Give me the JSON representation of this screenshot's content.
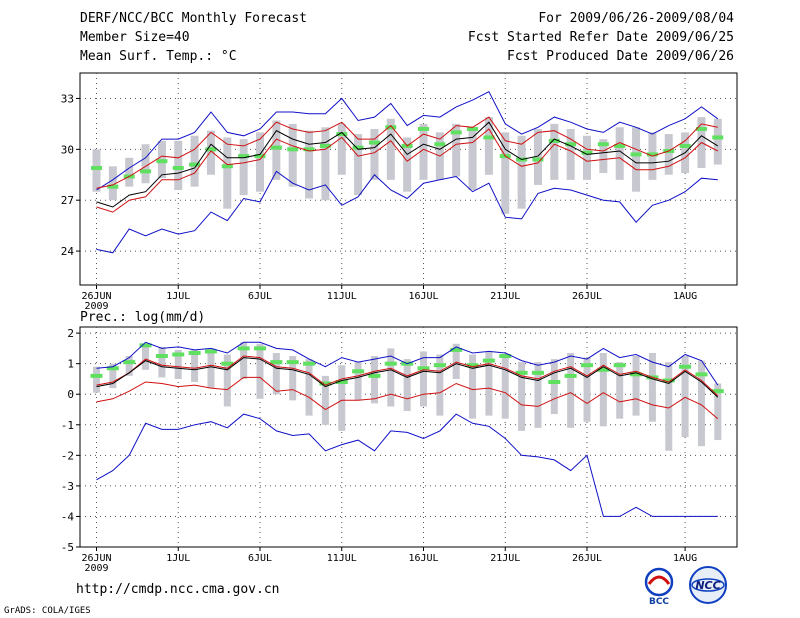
{
  "header": {
    "title": "DERF/NCC/BCC Monthly Forecast",
    "member": "Member Size=40",
    "variable": "Mean Surf. Temp.: °C",
    "period": "For 2009/06/26-2009/08/04",
    "started": "Fcst Started Refer Date 2009/06/25",
    "produced": "Fcst Produced Date 2009/06/26"
  },
  "footer": {
    "url": "http://cmdp.ncc.cma.gov.cn",
    "credit": "GrADS: COLA/IGES"
  },
  "logos": {
    "left": "BCC",
    "right": "NCC"
  },
  "colors": {
    "envelope": "#1010c8",
    "percentile": "#d01010",
    "median": "#000000",
    "box": "#c8c8d0",
    "marker": "#60e060",
    "grid": "#555555"
  },
  "chart_data": [
    {
      "type": "box",
      "title": "Mean Surf. Temp.: °C",
      "x_start_label": "26JUN",
      "x_year_label": "2009",
      "x_ticks": [
        "26JUN",
        "1JUL",
        "6JUL",
        "11JUL",
        "16JUL",
        "21JUL",
        "26JUL",
        "1AUG"
      ],
      "x_tick_days": [
        0,
        5,
        10,
        15,
        20,
        25,
        30,
        36
      ],
      "ylim": [
        22.0,
        34.5
      ],
      "y_ticks": [
        24,
        27,
        30,
        33
      ],
      "series": [
        {
          "name": "max",
          "values": [
            24.1,
            23.9,
            25.3,
            24.9,
            25.3,
            25.0,
            25.2,
            26.3,
            25.8,
            27.1,
            26.9,
            28.7,
            28.0,
            27.6,
            27.9,
            26.7,
            27.2,
            28.5,
            27.6,
            27.1,
            28.0,
            28.2,
            28.4,
            27.5,
            28.0,
            26.0,
            25.9,
            27.4,
            27.7,
            27.6,
            27.3,
            27.0,
            26.9,
            25.7,
            26.7,
            27.0,
            27.5,
            28.3,
            28.2
          ],
          "override_name": "min"
        },
        {
          "name": "min_envelope",
          "values": [
            27.6,
            28.2,
            28.9,
            29.5,
            30.6,
            30.6,
            31.0,
            32.2,
            31.0,
            30.8,
            31.2,
            32.2,
            32.2,
            32.1,
            32.1,
            33.0,
            31.7,
            31.9,
            32.7,
            31.4,
            32.0,
            31.9,
            32.5,
            32.9,
            33.4,
            31.5,
            30.9,
            31.3,
            31.9,
            31.6,
            31.2,
            31.0,
            31.6,
            31.3,
            30.9,
            31.4,
            31.8,
            32.5,
            31.8
          ]
        },
        {
          "name": "p90",
          "values": [
            27.7,
            27.9,
            28.4,
            29.0,
            29.6,
            29.5,
            30.0,
            31.0,
            30.3,
            30.2,
            30.6,
            31.6,
            31.2,
            31.0,
            31.1,
            31.6,
            30.6,
            30.6,
            31.4,
            30.2,
            30.9,
            30.6,
            31.4,
            31.3,
            31.9,
            30.5,
            30.3,
            31.0,
            31.1,
            30.6,
            30.0,
            29.9,
            30.4,
            30.0,
            29.6,
            29.9,
            30.5,
            31.5,
            31.3
          ]
        },
        {
          "name": "median",
          "values": [
            26.9,
            26.6,
            27.3,
            27.5,
            28.5,
            28.6,
            28.9,
            30.3,
            29.5,
            29.5,
            29.7,
            31.1,
            30.6,
            30.3,
            30.4,
            31.0,
            30.0,
            30.1,
            30.9,
            29.7,
            30.3,
            30.0,
            30.6,
            30.7,
            31.6,
            30.0,
            29.4,
            29.6,
            30.6,
            30.2,
            29.7,
            29.8,
            29.9,
            29.2,
            29.2,
            29.3,
            29.8,
            30.8,
            30.2
          ]
        },
        {
          "name": "p10",
          "values": [
            26.6,
            26.3,
            27.0,
            27.2,
            28.2,
            28.2,
            28.6,
            29.9,
            29.1,
            29.2,
            29.4,
            30.6,
            30.2,
            29.9,
            30.0,
            30.7,
            29.6,
            29.8,
            30.5,
            29.3,
            30.0,
            29.6,
            30.3,
            30.4,
            31.2,
            29.6,
            29.0,
            29.2,
            30.3,
            29.9,
            29.3,
            29.4,
            29.5,
            28.8,
            28.8,
            29.0,
            29.5,
            30.4,
            29.9
          ]
        }
      ],
      "boxes_low": [
        27.5,
        27.0,
        27.8,
        28.0,
        28.3,
        27.6,
        27.8,
        28.5,
        26.5,
        27.3,
        27.5,
        28.2,
        27.8,
        27.1,
        27.0,
        28.5,
        27.3,
        28.2,
        28.2,
        27.5,
        28.2,
        28.2,
        28.4,
        27.6,
        28.5,
        26.2,
        26.5,
        27.9,
        28.2,
        28.2,
        28.2,
        28.6,
        28.2,
        27.5,
        28.2,
        28.5,
        28.6,
        28.9,
        29.1
      ],
      "boxes_high": [
        30.0,
        29.0,
        29.5,
        30.3,
        30.5,
        30.5,
        30.8,
        31.1,
        30.7,
        30.6,
        31.0,
        31.7,
        31.5,
        31.1,
        31.3,
        31.5,
        30.9,
        31.2,
        31.8,
        30.7,
        31.5,
        31.0,
        31.5,
        31.3,
        31.9,
        31.0,
        30.8,
        31.2,
        31.5,
        31.2,
        30.8,
        30.6,
        31.3,
        31.3,
        31.0,
        30.9,
        31.0,
        31.9,
        31.8
      ],
      "markers": [
        28.9,
        27.8,
        28.4,
        28.7,
        29.3,
        28.9,
        29.1,
        30.0,
        29.0,
        29.6,
        29.6,
        30.1,
        30.0,
        30.0,
        30.2,
        30.9,
        30.1,
        30.4,
        31.3,
        30.2,
        31.2,
        30.3,
        31.0,
        31.2,
        30.7,
        29.6,
        29.4,
        29.4,
        30.5,
        30.3,
        29.8,
        30.3,
        30.2,
        29.7,
        29.7,
        29.9,
        30.2,
        31.2,
        30.7
      ]
    },
    {
      "type": "box",
      "title": "Prec.: log(mm/d)",
      "x_start_label": "26JUN",
      "x_year_label": "2009",
      "x_ticks": [
        "26JUN",
        "1JUL",
        "6JUL",
        "11JUL",
        "16JUL",
        "21JUL",
        "26JUL",
        "1AUG"
      ],
      "x_tick_days": [
        0,
        5,
        10,
        15,
        20,
        25,
        30,
        36
      ],
      "ylim": [
        -5,
        2.2
      ],
      "y_ticks": [
        -5,
        -4,
        -3,
        -2,
        -1,
        0,
        1,
        2
      ],
      "series": [
        {
          "name": "max",
          "values": [
            0.85,
            0.9,
            1.2,
            1.7,
            1.5,
            1.55,
            1.45,
            1.5,
            1.35,
            1.7,
            1.7,
            1.5,
            1.45,
            1.15,
            0.9,
            1.2,
            1.05,
            1.15,
            1.25,
            1.0,
            1.2,
            1.2,
            1.55,
            1.35,
            1.4,
            1.35,
            1.1,
            0.95,
            1.05,
            1.25,
            1.15,
            1.5,
            1.2,
            1.3,
            1.05,
            0.9,
            1.3,
            1.1,
            0.3
          ]
        },
        {
          "name": "min",
          "values": [
            -2.8,
            -2.5,
            -2.0,
            -0.95,
            -1.15,
            -1.15,
            -1.0,
            -0.9,
            -1.1,
            -0.65,
            -0.8,
            -1.2,
            -1.35,
            -1.3,
            -1.85,
            -1.65,
            -1.5,
            -1.85,
            -1.2,
            -1.25,
            -1.45,
            -1.2,
            -0.65,
            -0.95,
            -1.05,
            -1.45,
            -2.0,
            -2.05,
            -2.15,
            -2.5,
            -2.0,
            -4.0,
            -4.0,
            -3.7,
            -4.0,
            -4.0,
            -4.0,
            -4.0,
            -4.0
          ]
        },
        {
          "name": "p90",
          "values": [
            0.3,
            0.4,
            0.7,
            1.15,
            0.95,
            0.9,
            0.85,
            0.95,
            0.85,
            1.25,
            1.2,
            0.9,
            0.85,
            0.7,
            0.3,
            0.5,
            0.6,
            0.75,
            0.85,
            0.6,
            0.8,
            0.75,
            1.05,
            0.9,
            1.0,
            0.85,
            0.6,
            0.5,
            0.75,
            0.9,
            0.6,
            0.95,
            0.65,
            0.75,
            0.55,
            0.4,
            0.8,
            0.45,
            -0.05
          ]
        },
        {
          "name": "median",
          "values": [
            0.25,
            0.35,
            0.7,
            1.1,
            0.9,
            0.85,
            0.8,
            0.9,
            0.8,
            1.2,
            1.15,
            0.85,
            0.8,
            0.65,
            0.25,
            0.45,
            0.55,
            0.7,
            0.8,
            0.55,
            0.75,
            0.7,
            1.0,
            0.85,
            0.95,
            0.8,
            0.55,
            0.45,
            0.7,
            0.85,
            0.55,
            0.9,
            0.6,
            0.7,
            0.5,
            0.35,
            0.75,
            0.4,
            -0.1
          ]
        },
        {
          "name": "p10",
          "values": [
            -0.25,
            -0.15,
            0.1,
            0.4,
            0.35,
            0.25,
            0.3,
            0.2,
            0.15,
            0.55,
            0.55,
            0.1,
            0.15,
            -0.1,
            -0.5,
            -0.2,
            -0.2,
            -0.15,
            0.0,
            -0.15,
            0.0,
            0.05,
            0.35,
            0.15,
            0.2,
            0.05,
            -0.35,
            -0.4,
            -0.15,
            0.05,
            -0.3,
            0.05,
            -0.25,
            -0.15,
            -0.35,
            -0.45,
            -0.1,
            -0.35,
            -0.8
          ]
        }
      ],
      "boxes_low": [
        0.05,
        0.2,
        0.6,
        0.8,
        0.55,
        0.5,
        0.4,
        0.2,
        -0.4,
        0.5,
        -0.15,
        0.0,
        -0.2,
        -0.7,
        -1.0,
        -1.2,
        -0.2,
        -0.3,
        -0.4,
        -0.55,
        -0.4,
        -0.7,
        0.5,
        -0.8,
        -0.7,
        -0.8,
        -1.2,
        -1.1,
        -0.65,
        -1.1,
        -0.9,
        -1.05,
        -0.8,
        -0.7,
        -0.9,
        -1.85,
        -1.4,
        -1.7,
        -1.5
      ],
      "boxes_high": [
        0.9,
        1.0,
        1.25,
        1.6,
        1.55,
        1.45,
        1.45,
        1.5,
        1.3,
        1.7,
        1.65,
        1.35,
        1.25,
        1.15,
        0.6,
        0.95,
        1.05,
        1.25,
        1.5,
        1.15,
        1.4,
        1.3,
        1.65,
        1.3,
        1.4,
        1.3,
        1.05,
        1.05,
        1.15,
        1.35,
        1.2,
        1.35,
        1.05,
        1.25,
        1.35,
        1.05,
        1.25,
        1.1,
        0.35
      ],
      "markers": [
        0.6,
        0.85,
        1.05,
        1.6,
        1.25,
        1.3,
        1.35,
        1.4,
        1.0,
        1.5,
        1.5,
        1.05,
        1.05,
        1.0,
        0.35,
        0.4,
        0.75,
        0.6,
        1.0,
        1.0,
        0.85,
        0.95,
        1.45,
        0.95,
        1.1,
        1.25,
        0.7,
        0.7,
        0.4,
        0.6,
        0.95,
        0.8,
        0.95,
        0.65,
        0.55,
        0.45,
        0.9,
        0.65,
        0.1
      ]
    }
  ]
}
